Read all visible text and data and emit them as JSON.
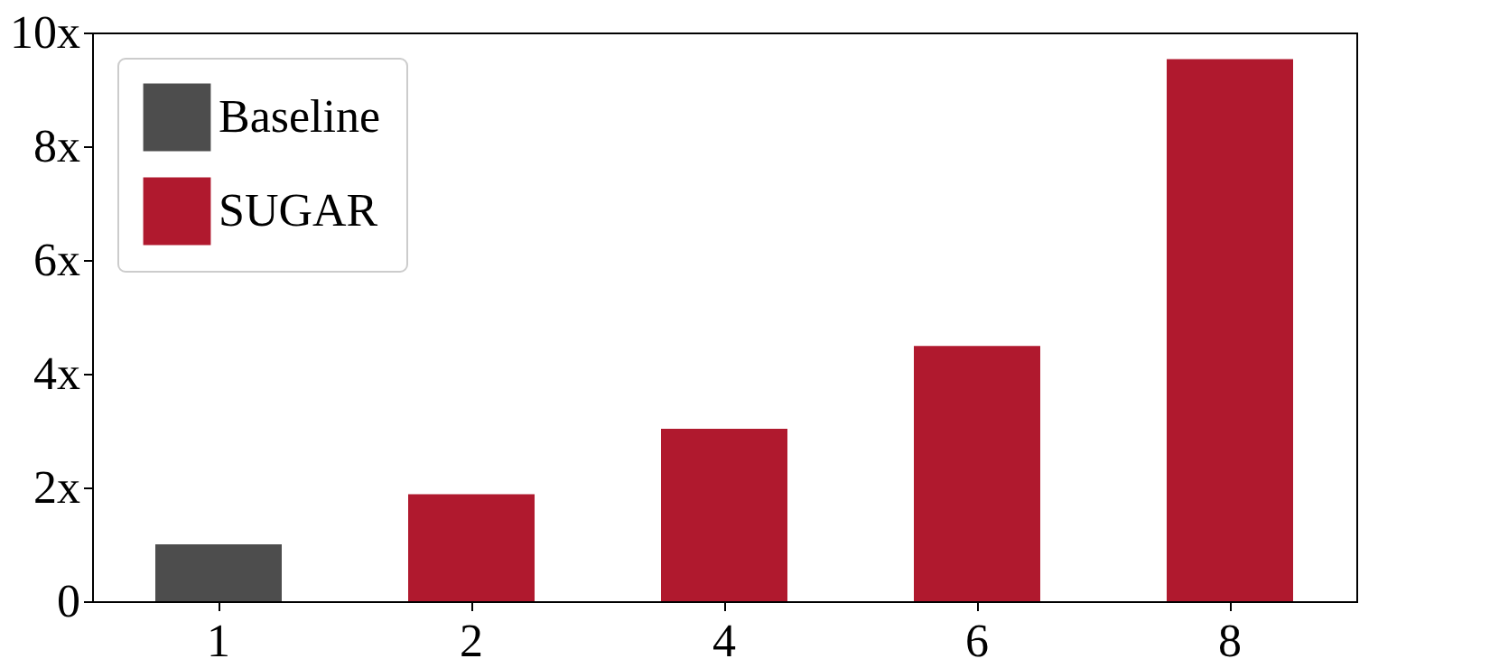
{
  "chart_data": {
    "type": "bar",
    "categories": [
      "1",
      "2",
      "4",
      "6",
      "8"
    ],
    "series": [
      {
        "name": "Baseline",
        "color": "#4d4d4d",
        "values": [
          1.0,
          null,
          null,
          null,
          null
        ]
      },
      {
        "name": "SUGAR",
        "color": "#b0192e",
        "values": [
          null,
          1.88,
          3.03,
          4.49,
          9.53
        ]
      }
    ],
    "ylim": [
      0,
      10
    ],
    "yticks": [
      0,
      {
        "value": 2,
        "label": "2x"
      },
      {
        "value": 4,
        "label": "4x"
      },
      {
        "value": 6,
        "label": "6x"
      },
      {
        "value": 8,
        "label": "8x"
      },
      {
        "value": 10,
        "label": "10x"
      }
    ],
    "grid": false,
    "legend": "top left"
  }
}
